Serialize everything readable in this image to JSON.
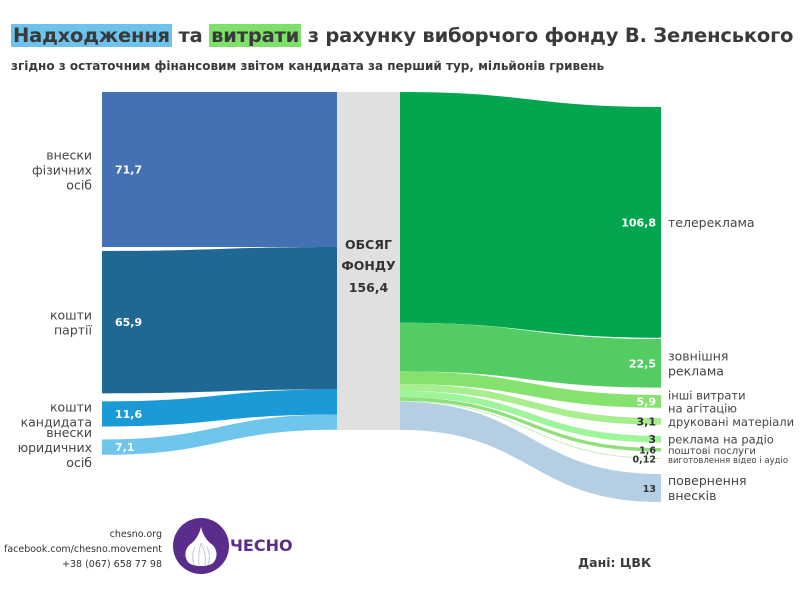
{
  "header": {
    "title_part1": "Надходження",
    "title_part2": " та ",
    "title_part3": "витрати",
    "title_part4": " з рахунку виборчого фонду В. Зеленського",
    "subtitle": "згідно з остаточним фінансовим звітом кандидата за перший тур, мільйонів гривень"
  },
  "chart_data": {
    "type": "sankey",
    "title": "Надходження та витрати з рахунку виборчого фонду В. Зеленського",
    "unit": "мільйонів гривень",
    "center": {
      "label_line1": "ОБСЯГ",
      "label_line2": "ФОНДУ",
      "value_label": "156,4",
      "value": 156.4
    },
    "inflows": [
      {
        "label_lines": [
          "внески",
          "фізичних",
          "осіб"
        ],
        "value": 71.7,
        "value_label": "71,7",
        "color": "#4470b4"
      },
      {
        "label_lines": [
          "кошти",
          "партії"
        ],
        "value": 65.9,
        "value_label": "65,9",
        "color": "#1f6893"
      },
      {
        "label_lines": [
          "кошти",
          "кандидата"
        ],
        "value": 11.6,
        "value_label": "11,6",
        "color": "#1a9ad6"
      },
      {
        "label_lines": [
          "внески",
          "юридичних",
          "осіб"
        ],
        "value": 7.1,
        "value_label": "7,1",
        "color": "#6fc5ec"
      }
    ],
    "outflows": [
      {
        "label_lines": [
          "телереклама"
        ],
        "value": 106.8,
        "value_label": "106,8",
        "color": "#03a64e",
        "value_color": "#ffffff"
      },
      {
        "label_lines": [
          "зовнішня",
          "реклама"
        ],
        "value": 22.5,
        "value_label": "22,5",
        "color": "#55cc63",
        "value_color": "#ffffff"
      },
      {
        "label_lines": [
          "інші витрати",
          "на агітацію"
        ],
        "value": 5.9,
        "value_label": "5,9",
        "color": "#86e26f",
        "value_color": "#ffffff"
      },
      {
        "label_lines": [
          "друковані матеріали"
        ],
        "value": 3.1,
        "value_label": "3,1",
        "color": "#a6ee8e",
        "value_color": "#333333"
      },
      {
        "label_lines": [
          "реклама на радіо"
        ],
        "value": 3,
        "value_label": "3",
        "color": "#9ef59a",
        "value_color": "#333333"
      },
      {
        "label_lines": [
          "поштові послуги"
        ],
        "value": 1.6,
        "value_label": "1,6",
        "color": "#8fe07a",
        "value_color": "#333333"
      },
      {
        "label_lines": [
          "виготовлення відео і аудіо"
        ],
        "value": 0.12,
        "value_label": "0,12",
        "color": "#c9ecc0",
        "value_color": "#333333"
      },
      {
        "label_lines": [
          "повернення",
          "внесків"
        ],
        "value": 13,
        "value_label": "13",
        "color": "#b4cfe4",
        "value_color": "#333333"
      }
    ]
  },
  "footer": {
    "contacts": [
      "chesno.org",
      "facebook.com/chesno.movement",
      "+38 (067) 658 77 98"
    ],
    "logo_text": "ЧЕСНО",
    "logo_color": "#5a2d8c",
    "source": "Дані: ЦВК"
  }
}
